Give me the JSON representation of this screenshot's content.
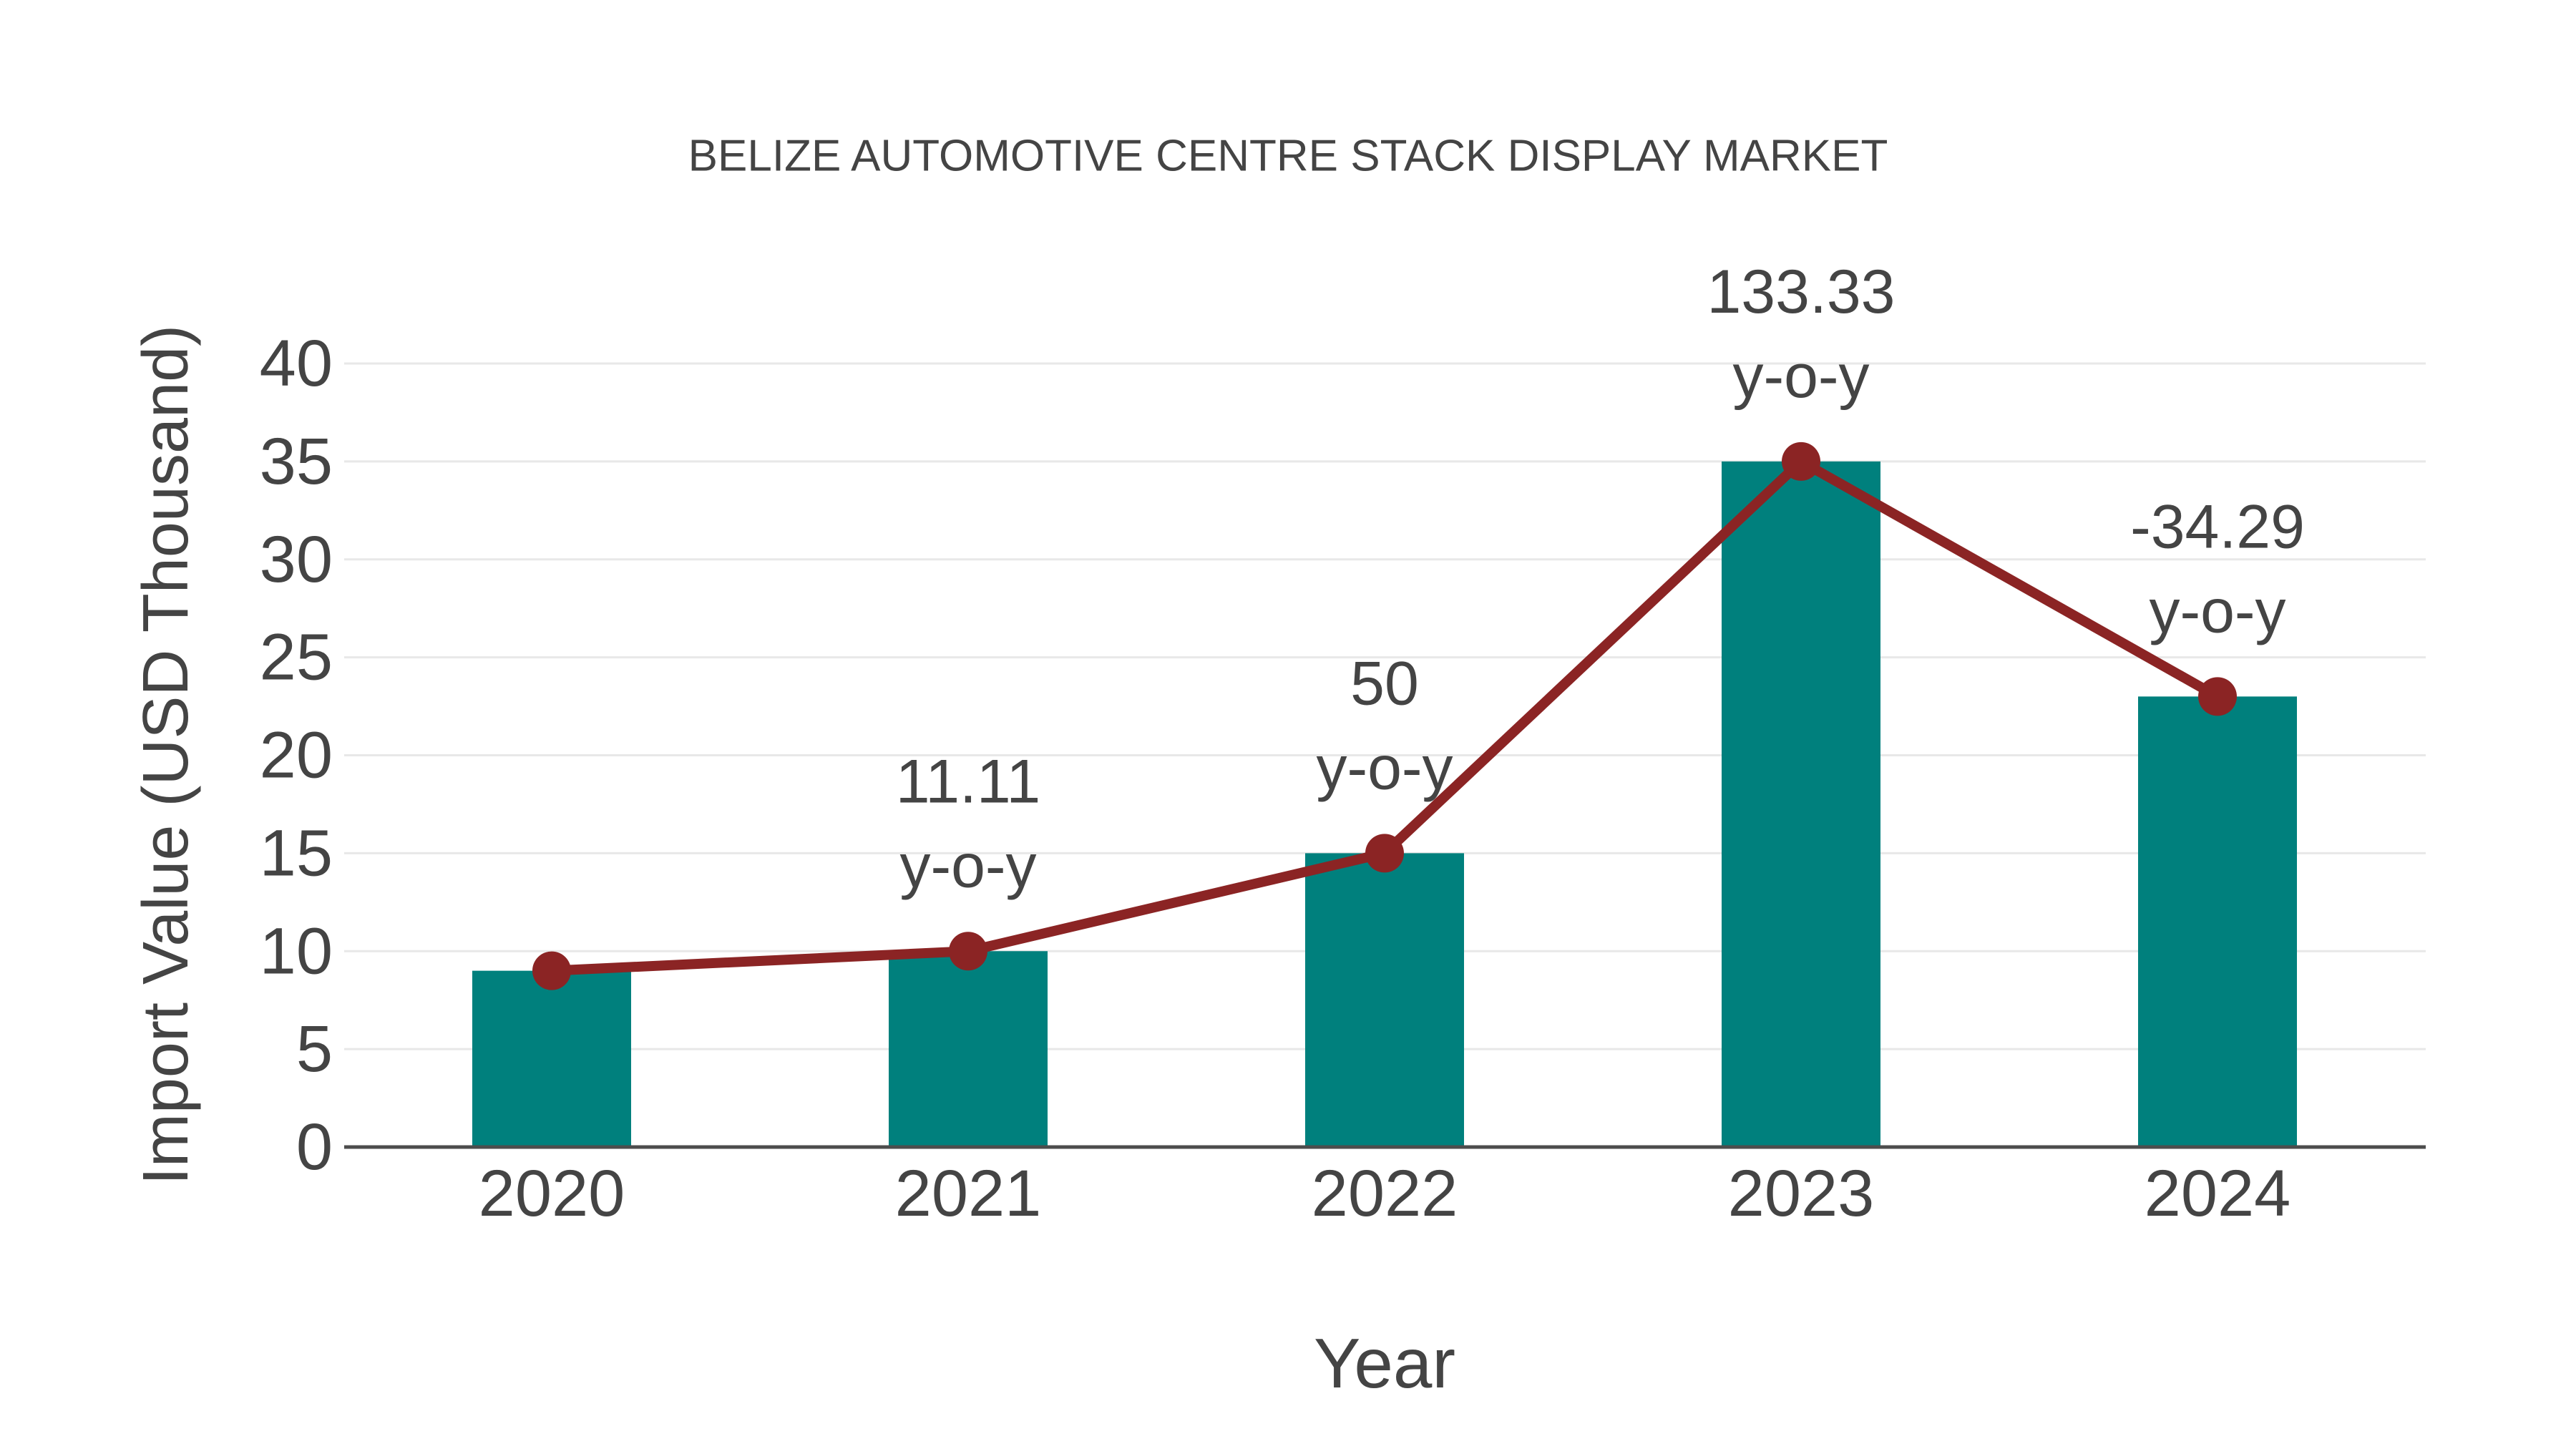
{
  "title": "BELIZE AUTOMOTIVE CENTRE STACK DISPLAY MARKET",
  "colors": {
    "bar": "#00807D",
    "line": "#8B2424",
    "marker": "#8B2424",
    "text": "#444444",
    "grid": "#E8E8E8",
    "axis_line": "#4D4D4D",
    "background": "#FFFFFF"
  },
  "chart_data": {
    "type": "bar",
    "title": "BELIZE AUTOMOTIVE CENTRE STACK DISPLAY MARKET",
    "xlabel": "Year",
    "ylabel": "Import Value (USD Thousand)",
    "categories": [
      "2020",
      "2021",
      "2022",
      "2023",
      "2024"
    ],
    "series": [
      {
        "name": "import-value-bars",
        "type": "bar",
        "values": [
          9,
          10,
          15,
          35,
          23
        ]
      },
      {
        "name": "yoy-overlay-line",
        "type": "line",
        "values": [
          9,
          10,
          15,
          35,
          23
        ]
      }
    ],
    "annotations": [
      {
        "category": "2021",
        "lines": [
          "11.11",
          "y-o-y"
        ]
      },
      {
        "category": "2022",
        "lines": [
          "50",
          "y-o-y"
        ]
      },
      {
        "category": "2023",
        "lines": [
          "133.33",
          "y-o-y"
        ]
      },
      {
        "category": "2024",
        "lines": [
          "-34.29",
          "y-o-y"
        ]
      }
    ],
    "ylim": [
      0,
      40
    ],
    "yticks": [
      0,
      5,
      10,
      15,
      20,
      25,
      30,
      35,
      40
    ],
    "grid": true,
    "legend": false
  }
}
